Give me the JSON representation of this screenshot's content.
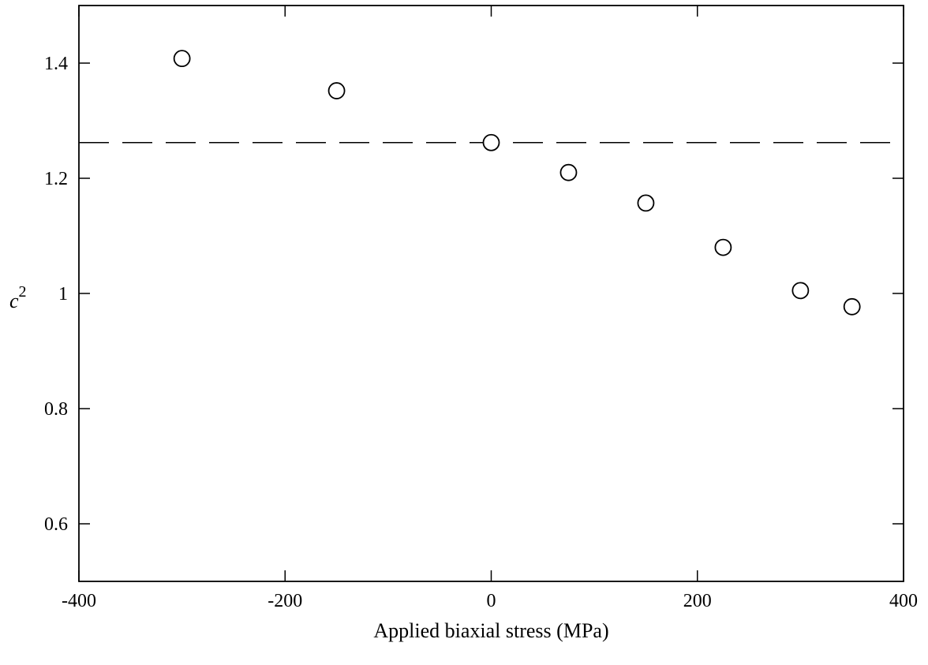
{
  "chart_data": {
    "type": "scatter",
    "xlabel": "Applied biaxial stress (MPa)",
    "ylabel_base": "c",
    "ylabel_exponent": "2",
    "xlim": [
      -400,
      400
    ],
    "ylim": [
      0.5,
      1.5
    ],
    "x_ticks": [
      -400,
      -200,
      0,
      200,
      400
    ],
    "x_tick_labels": [
      "-400",
      "-200",
      "0",
      "200",
      "400"
    ],
    "y_ticks": [
      0.6,
      0.8,
      1.0,
      1.2,
      1.4
    ],
    "y_tick_labels": [
      "0.6",
      "0.8",
      "1",
      "1.2",
      "1.4"
    ],
    "grid": false,
    "series": [
      {
        "marker": "open-circle",
        "x": [
          -300,
          -150,
          0,
          75,
          150,
          225,
          300,
          350
        ],
        "y": [
          1.408,
          1.352,
          1.262,
          1.21,
          1.157,
          1.08,
          1.005,
          0.977
        ]
      }
    ],
    "reference_line": {
      "orientation": "horizontal",
      "style": "dashed",
      "y": 1.262
    }
  }
}
